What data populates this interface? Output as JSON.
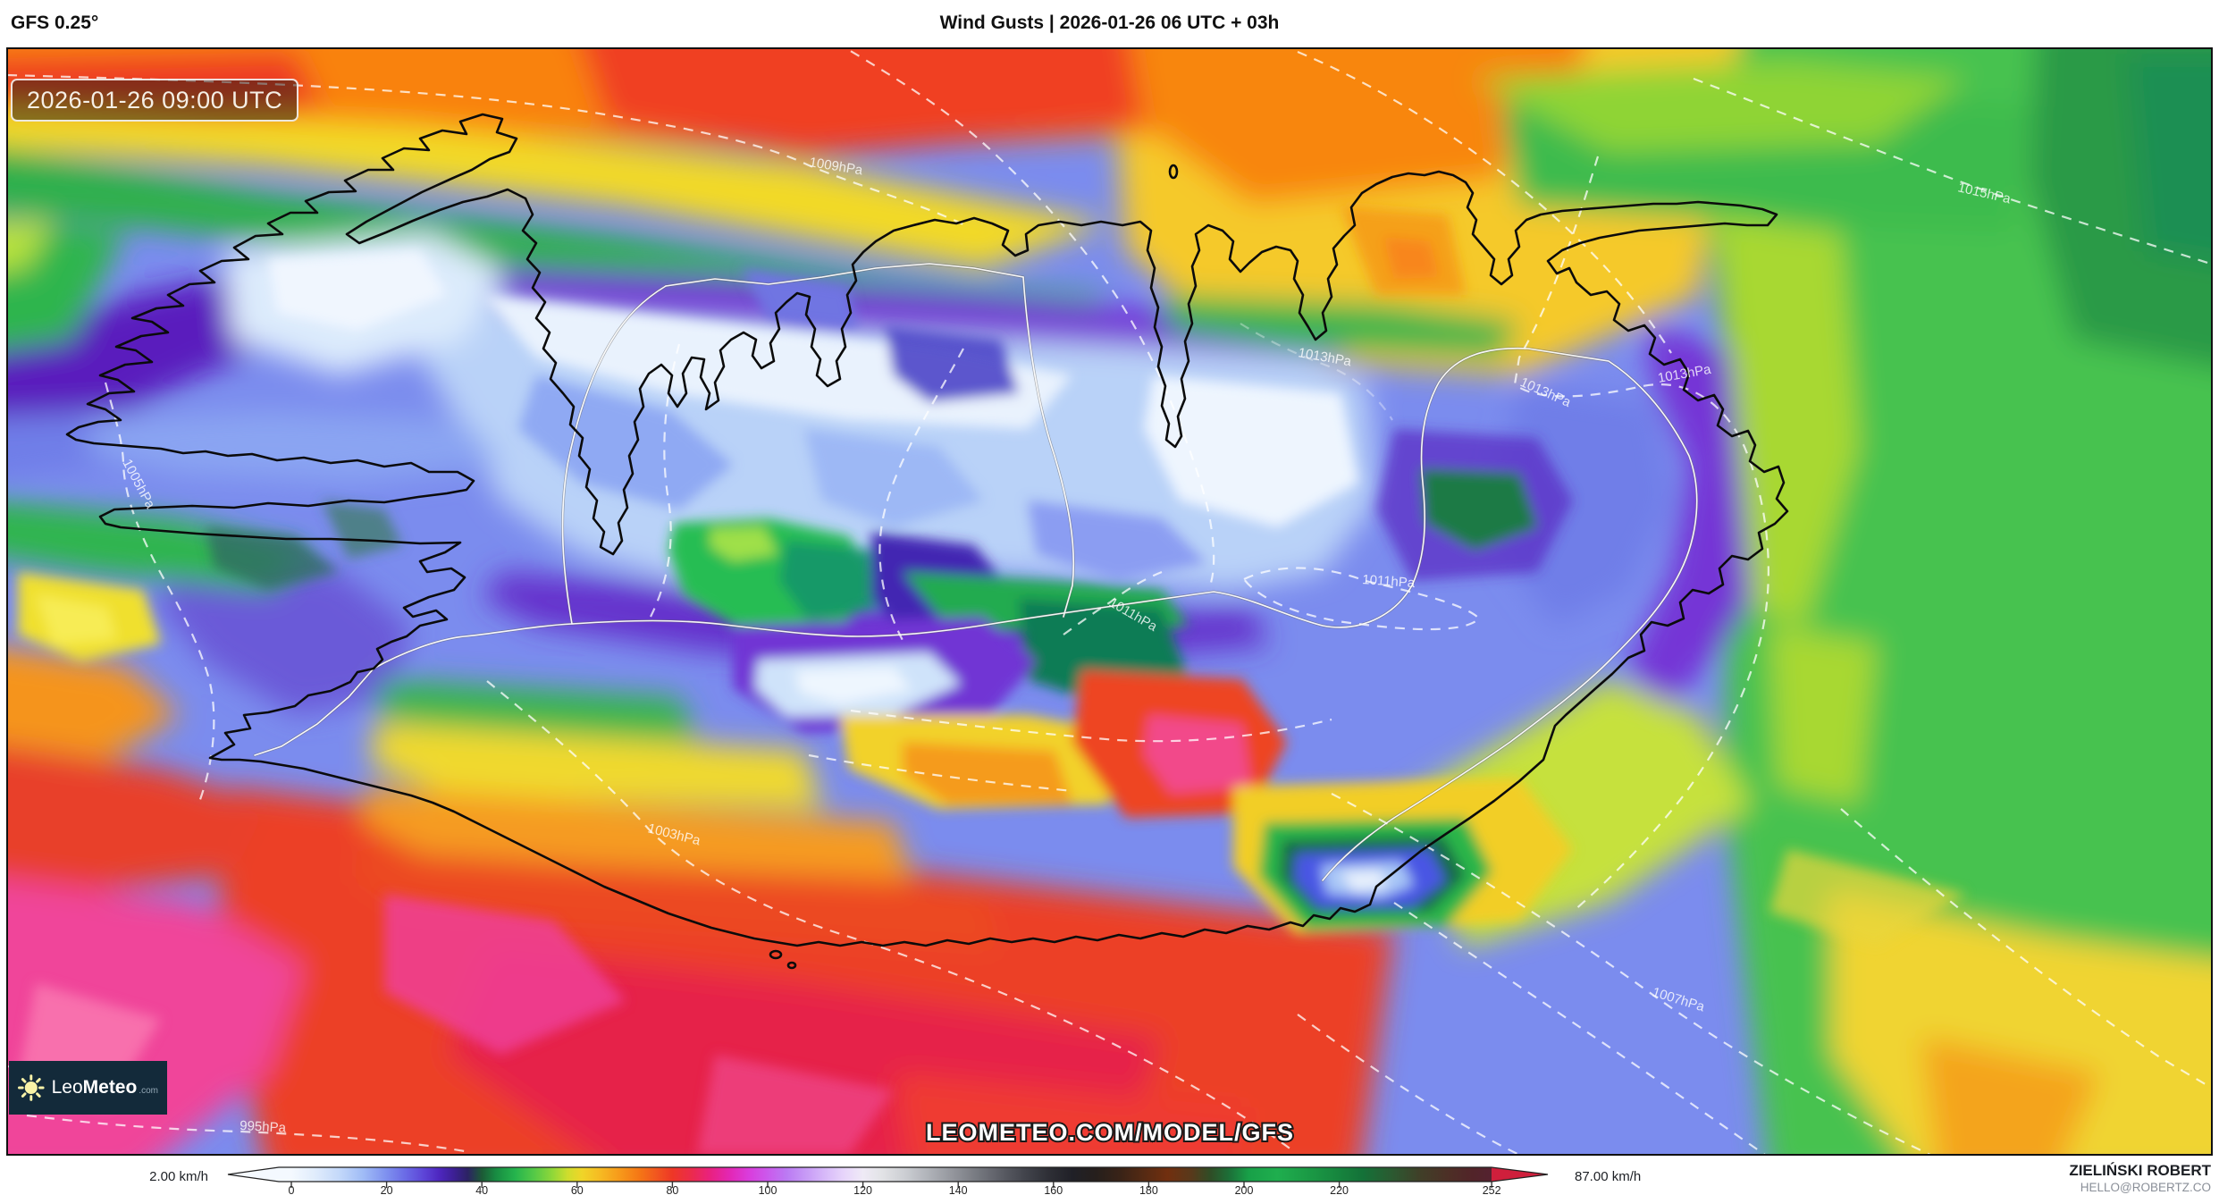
{
  "header": {
    "model": "GFS 0.25°",
    "title": "Wind Gusts | 2026-01-26 06 UTC + 03h"
  },
  "map": {
    "timestamp_badge": "2026-01-26 09:00 UTC",
    "watermark": "LEOMETEO.COM/MODEL/GFS",
    "isobar_labels": [
      {
        "text": "1009hPa"
      },
      {
        "text": "1015hPa"
      },
      {
        "text": "1013hPa"
      },
      {
        "text": "1013hPa"
      },
      {
        "text": "1013hPa"
      },
      {
        "text": "1011hPa"
      },
      {
        "text": "1011hPa"
      },
      {
        "text": "1005hPa"
      },
      {
        "text": "1003hPa"
      },
      {
        "text": "1007hPa"
      },
      {
        "text": "995hPa"
      }
    ]
  },
  "logo": {
    "prefix": "Leo",
    "suffix": "Meteo",
    "tld": ".com"
  },
  "colorbar": {
    "min_label": "2.00 km/h",
    "max_label": "87.00 km/h",
    "unit": "km/h",
    "ticks": [
      "0",
      "20",
      "40",
      "60",
      "80",
      "100",
      "120",
      "140",
      "160",
      "180",
      "200",
      "220",
      "252"
    ],
    "gradient_stops": [
      {
        "v": 0,
        "color": "#f4f9ff"
      },
      {
        "v": 5,
        "color": "#e0ecfc"
      },
      {
        "v": 10,
        "color": "#c4d9fa"
      },
      {
        "v": 15,
        "color": "#a0bcf6"
      },
      {
        "v": 20,
        "color": "#7e90ef"
      },
      {
        "v": 24,
        "color": "#6a6ae6"
      },
      {
        "v": 28,
        "color": "#5c43d6"
      },
      {
        "v": 31,
        "color": "#4e27c0"
      },
      {
        "v": 34,
        "color": "#3d2096"
      },
      {
        "v": 37,
        "color": "#2c2264"
      },
      {
        "v": 40,
        "color": "#1c5a36"
      },
      {
        "v": 43,
        "color": "#188c42"
      },
      {
        "v": 47,
        "color": "#25b44d"
      },
      {
        "v": 51,
        "color": "#55c947"
      },
      {
        "v": 55,
        "color": "#93d838"
      },
      {
        "v": 58,
        "color": "#cedd2d"
      },
      {
        "v": 61,
        "color": "#f0d528"
      },
      {
        "v": 65,
        "color": "#f6b922"
      },
      {
        "v": 69,
        "color": "#f7991a"
      },
      {
        "v": 73,
        "color": "#f57715"
      },
      {
        "v": 77,
        "color": "#f15320"
      },
      {
        "v": 80,
        "color": "#ee3726"
      },
      {
        "v": 84,
        "color": "#eb2b4c"
      },
      {
        "v": 88,
        "color": "#e92180"
      },
      {
        "v": 92,
        "color": "#e327b4"
      },
      {
        "v": 96,
        "color": "#da3cdc"
      },
      {
        "v": 100,
        "color": "#cb59ec"
      },
      {
        "v": 104,
        "color": "#bb7af3"
      },
      {
        "v": 108,
        "color": "#c79af6"
      },
      {
        "v": 112,
        "color": "#d7b9f9"
      },
      {
        "v": 116,
        "color": "#e7d5fb"
      },
      {
        "v": 120,
        "color": "#efeaf6"
      },
      {
        "v": 124,
        "color": "#e2e3e6"
      },
      {
        "v": 129,
        "color": "#cbcdd2"
      },
      {
        "v": 134,
        "color": "#aeb1b7"
      },
      {
        "v": 139,
        "color": "#93959c"
      },
      {
        "v": 144,
        "color": "#767980"
      },
      {
        "v": 149,
        "color": "#5b5d65"
      },
      {
        "v": 154,
        "color": "#42444c"
      },
      {
        "v": 159,
        "color": "#2e2f36"
      },
      {
        "v": 164,
        "color": "#202027"
      },
      {
        "v": 169,
        "color": "#261f1c"
      },
      {
        "v": 174,
        "color": "#392317"
      },
      {
        "v": 179,
        "color": "#552a13"
      },
      {
        "v": 184,
        "color": "#712f0f"
      },
      {
        "v": 189,
        "color": "#58391b"
      },
      {
        "v": 193,
        "color": "#2f4d26"
      },
      {
        "v": 197,
        "color": "#1c7038"
      },
      {
        "v": 201,
        "color": "#18a048"
      },
      {
        "v": 207,
        "color": "#1fae4e"
      },
      {
        "v": 213,
        "color": "#1b9c46"
      },
      {
        "v": 219,
        "color": "#17883f"
      },
      {
        "v": 225,
        "color": "#147138"
      },
      {
        "v": 231,
        "color": "#2b5a31"
      },
      {
        "v": 237,
        "color": "#403f28"
      },
      {
        "v": 243,
        "color": "#4d2f26"
      },
      {
        "v": 248,
        "color": "#522429"
      },
      {
        "v": 252,
        "color": "#542230"
      }
    ]
  },
  "credits": {
    "name": "ZIELIŃSKI ROBERT",
    "email": "HELLO@ROBERTZ.CO"
  },
  "colors": {
    "brand_navy": "#132a3a",
    "sun_yellow": "#f7f2a8",
    "arrow_max_red": "#cf1f3c",
    "arrow_min_white": "#f4f9ff"
  }
}
